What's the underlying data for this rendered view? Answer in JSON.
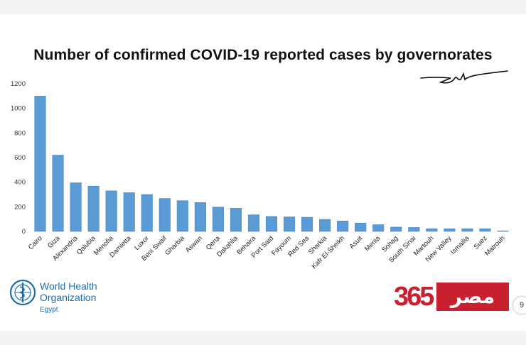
{
  "slide": {
    "page_number": "9"
  },
  "logos": {
    "who_name_line1": "World Health",
    "who_name_line2": "Organization",
    "who_country": "Egypt",
    "who_icon": "who-emblem-icon",
    "masr_number": "365",
    "masr_word": "مصر"
  },
  "colors": {
    "bar": "#5b9bd5",
    "bar_edge": "#4a89c8",
    "masr_red": "#c9202f",
    "who_blue": "#1a6fb3"
  },
  "chart_data": {
    "type": "bar",
    "title": "Number of confirmed COVID-19 reported cases by governorates",
    "xlabel": "",
    "ylabel": "",
    "ylim": [
      0,
      1200
    ],
    "yticks": [
      "0",
      "200",
      "400",
      "600",
      "800",
      "1000",
      "1200"
    ],
    "grid": false,
    "legend": "none",
    "categories": [
      "Cairo",
      "Giza",
      "Alexandria",
      "Qalubia",
      "Menofia",
      "Damietta",
      "Luxor",
      "Beni Swaif",
      "Gharbia",
      "Aswan",
      "Qena",
      "Dakahlia",
      "Behaira",
      "Port Said",
      "Fayoum",
      "Red Sea",
      "Sharkia",
      "Kafr El-Sheikh",
      "Asuit",
      "Menia",
      "Sohag",
      "South Sinai",
      "Martouh",
      "New Valley",
      "Ismailia",
      "Suez",
      "Matrouh"
    ],
    "values": [
      1100,
      620,
      395,
      368,
      330,
      315,
      300,
      268,
      250,
      235,
      198,
      188,
      135,
      122,
      118,
      115,
      98,
      85,
      68,
      55,
      35,
      32,
      22,
      22,
      22,
      22,
      5
    ]
  }
}
